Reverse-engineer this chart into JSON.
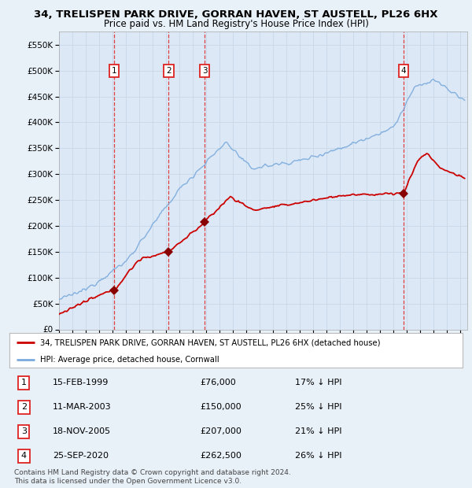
{
  "title": "34, TRELISPEN PARK DRIVE, GORRAN HAVEN, ST AUSTELL, PL26 6HX",
  "subtitle": "Price paid vs. HM Land Registry's House Price Index (HPI)",
  "ylim": [
    0,
    575000
  ],
  "yticks": [
    0,
    50000,
    100000,
    150000,
    200000,
    250000,
    300000,
    350000,
    400000,
    450000,
    500000,
    550000
  ],
  "xlim_start": 1995.0,
  "xlim_end": 2025.5,
  "background_color": "#e8f0f8",
  "plot_bg": "#dce8f5",
  "grid_color": "#c8d8e8",
  "red_line_color": "#cc0000",
  "blue_line_color": "#7aaadd",
  "sale_marker_color": "#880000",
  "vline_color": "#dd2222",
  "purchases": [
    {
      "num": 1,
      "year": 1999.12,
      "price": 76000,
      "label": "1"
    },
    {
      "num": 2,
      "year": 2003.19,
      "price": 150000,
      "label": "2"
    },
    {
      "num": 3,
      "year": 2005.88,
      "price": 207000,
      "label": "3"
    },
    {
      "num": 4,
      "year": 2020.73,
      "price": 262500,
      "label": "4"
    }
  ],
  "legend_line1": "34, TRELISPEN PARK DRIVE, GORRAN HAVEN, ST AUSTELL, PL26 6HX (detached house)",
  "legend_line2": "HPI: Average price, detached house, Cornwall",
  "table_entries": [
    {
      "num": "1",
      "date": "15-FEB-1999",
      "price": "£76,000",
      "hpi": "17% ↓ HPI"
    },
    {
      "num": "2",
      "date": "11-MAR-2003",
      "price": "£150,000",
      "hpi": "25% ↓ HPI"
    },
    {
      "num": "3",
      "date": "18-NOV-2005",
      "price": "£207,000",
      "hpi": "21% ↓ HPI"
    },
    {
      "num": "4",
      "date": "25-SEP-2020",
      "price": "£262,500",
      "hpi": "26% ↓ HPI"
    }
  ],
  "footnote": "Contains HM Land Registry data © Crown copyright and database right 2024.\nThis data is licensed under the Open Government Licence v3.0.",
  "title_fontsize": 9.5,
  "subtitle_fontsize": 8.5,
  "tick_fontsize": 7.5
}
